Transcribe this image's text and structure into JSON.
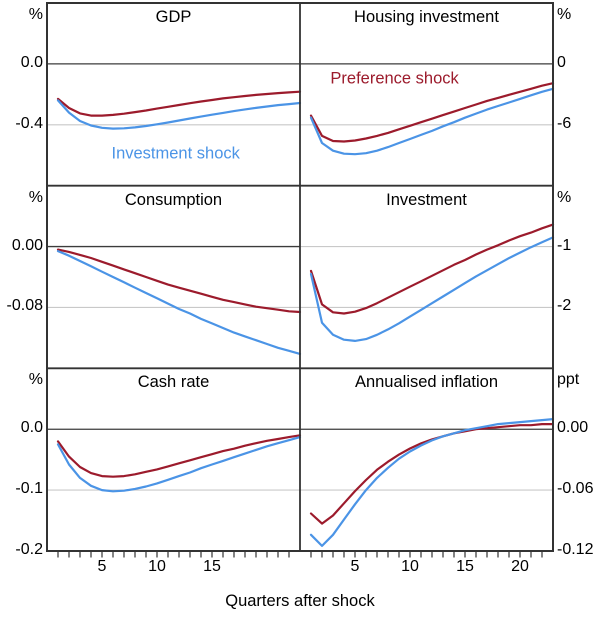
{
  "figure": {
    "xlabel": "Quarters after shock",
    "legend": [
      {
        "label": "Preference shock",
        "color_key": "preference"
      },
      {
        "label": "Investment shock",
        "color_key": "investment"
      }
    ],
    "colors": {
      "preference": "#9c1b2c",
      "investment": "#4b94e6",
      "gridline": "#c9c9c9",
      "zero_line": "#3c3c3c",
      "frame": "#333333",
      "text": "#000000",
      "background": "#ffffff"
    }
  },
  "chart_data": {
    "type": "line",
    "x_label": "Quarters after shock",
    "xlim": [
      0,
      23
    ],
    "x_quarters": [
      1,
      2,
      3,
      4,
      5,
      6,
      7,
      8,
      9,
      10,
      11,
      12,
      13,
      14,
      15,
      16,
      17,
      18,
      19,
      20,
      21,
      22,
      23
    ],
    "panels": [
      {
        "title": "GDP",
        "unit": "%",
        "axis_side": "left",
        "ylim": [
          -0.8,
          0.4
        ],
        "yticks": [
          {
            "v": 0.0,
            "label": "0.0",
            "zero": true
          },
          {
            "v": -0.4,
            "label": "-0.4",
            "zero": false
          }
        ],
        "series": [
          {
            "name": "Preference shock",
            "color_key": "preference",
            "values": [
              -0.23,
              -0.29,
              -0.325,
              -0.34,
              -0.34,
              -0.335,
              -0.327,
              -0.317,
              -0.306,
              -0.294,
              -0.282,
              -0.27,
              -0.258,
              -0.247,
              -0.237,
              -0.227,
              -0.219,
              -0.211,
              -0.204,
              -0.198,
              -0.192,
              -0.187,
              -0.183
            ]
          },
          {
            "name": "Investment shock",
            "color_key": "investment",
            "values": [
              -0.24,
              -0.32,
              -0.375,
              -0.405,
              -0.42,
              -0.425,
              -0.423,
              -0.417,
              -0.408,
              -0.397,
              -0.385,
              -0.372,
              -0.359,
              -0.346,
              -0.334,
              -0.322,
              -0.31,
              -0.299,
              -0.289,
              -0.28,
              -0.271,
              -0.264,
              -0.257
            ]
          }
        ],
        "annotation": {
          "text": "Investment shock",
          "color_key": "investment",
          "q": 11.7,
          "v": -0.59
        }
      },
      {
        "title": "Housing investment",
        "unit": "%",
        "axis_side": "right",
        "ylim": [
          -12,
          6
        ],
        "yticks": [
          {
            "v": 0,
            "label": "0",
            "zero": true
          },
          {
            "v": -6,
            "label": "-6",
            "zero": false
          }
        ],
        "series": [
          {
            "name": "Preference shock",
            "color_key": "preference",
            "values": [
              -5.1,
              -7.1,
              -7.6,
              -7.65,
              -7.55,
              -7.35,
              -7.1,
              -6.8,
              -6.45,
              -6.1,
              -5.75,
              -5.4,
              -5.05,
              -4.7,
              -4.35,
              -4.0,
              -3.65,
              -3.35,
              -3.05,
              -2.75,
              -2.45,
              -2.15,
              -1.9
            ]
          },
          {
            "name": "Investment shock",
            "color_key": "investment",
            "values": [
              -5.3,
              -7.8,
              -8.55,
              -8.85,
              -8.9,
              -8.8,
              -8.55,
              -8.2,
              -7.8,
              -7.4,
              -7.0,
              -6.6,
              -6.15,
              -5.75,
              -5.3,
              -4.9,
              -4.5,
              -4.15,
              -3.8,
              -3.45,
              -3.1,
              -2.75,
              -2.45
            ]
          }
        ],
        "annotation": {
          "text": "Preference shock",
          "color_key": "preference",
          "q": 8.6,
          "v": -1.5
        }
      },
      {
        "title": "Consumption",
        "unit": "%",
        "axis_side": "left",
        "ylim": [
          -0.16,
          0.08
        ],
        "yticks": [
          {
            "v": 0.0,
            "label": "0.00",
            "zero": true
          },
          {
            "v": -0.08,
            "label": "-0.08",
            "zero": false
          }
        ],
        "series": [
          {
            "name": "Preference shock",
            "color_key": "preference",
            "values": [
              -0.004,
              -0.007,
              -0.011,
              -0.015,
              -0.02,
              -0.025,
              -0.03,
              -0.035,
              -0.04,
              -0.045,
              -0.05,
              -0.054,
              -0.058,
              -0.062,
              -0.066,
              -0.07,
              -0.073,
              -0.076,
              -0.079,
              -0.081,
              -0.083,
              -0.085,
              -0.086
            ]
          },
          {
            "name": "Investment shock",
            "color_key": "investment",
            "values": [
              -0.006,
              -0.012,
              -0.019,
              -0.026,
              -0.033,
              -0.04,
              -0.047,
              -0.054,
              -0.061,
              -0.068,
              -0.075,
              -0.082,
              -0.088,
              -0.095,
              -0.101,
              -0.107,
              -0.113,
              -0.118,
              -0.123,
              -0.128,
              -0.133,
              -0.137,
              -0.141
            ]
          }
        ]
      },
      {
        "title": "Investment",
        "unit": "%",
        "axis_side": "right",
        "ylim": [
          -3,
          0
        ],
        "yticks": [
          {
            "v": -1,
            "label": "-1",
            "zero": false
          },
          {
            "v": -2,
            "label": "-2",
            "zero": false
          }
        ],
        "series": [
          {
            "name": "Preference shock",
            "color_key": "preference",
            "values": [
              -1.4,
              -1.95,
              -2.08,
              -2.1,
              -2.07,
              -2.01,
              -1.93,
              -1.84,
              -1.75,
              -1.66,
              -1.57,
              -1.48,
              -1.39,
              -1.3,
              -1.22,
              -1.13,
              -1.05,
              -0.98,
              -0.9,
              -0.83,
              -0.77,
              -0.7,
              -0.64
            ]
          },
          {
            "name": "Investment shock",
            "color_key": "investment",
            "values": [
              -1.45,
              -2.25,
              -2.45,
              -2.53,
              -2.55,
              -2.52,
              -2.45,
              -2.36,
              -2.26,
              -2.15,
              -2.04,
              -1.93,
              -1.82,
              -1.71,
              -1.6,
              -1.49,
              -1.39,
              -1.29,
              -1.19,
              -1.1,
              -1.01,
              -0.93,
              -0.85
            ]
          }
        ]
      },
      {
        "title": "Cash rate",
        "unit": "%",
        "axis_side": "left",
        "ylim": [
          -0.2,
          0.1
        ],
        "yticks": [
          {
            "v": 0.0,
            "label": "0.0",
            "zero": true
          },
          {
            "v": -0.1,
            "label": "-0.1",
            "zero": false
          },
          {
            "v": -0.2,
            "label": "-0.2",
            "zero": false
          }
        ],
        "xticks": [
          5,
          10,
          15
        ],
        "series": [
          {
            "name": "Preference shock",
            "color_key": "preference",
            "values": [
              -0.02,
              -0.045,
              -0.062,
              -0.072,
              -0.077,
              -0.078,
              -0.077,
              -0.074,
              -0.07,
              -0.066,
              -0.061,
              -0.056,
              -0.051,
              -0.046,
              -0.041,
              -0.036,
              -0.032,
              -0.027,
              -0.023,
              -0.019,
              -0.016,
              -0.013,
              -0.01
            ]
          },
          {
            "name": "Investment shock",
            "color_key": "investment",
            "values": [
              -0.025,
              -0.058,
              -0.08,
              -0.093,
              -0.1,
              -0.102,
              -0.101,
              -0.098,
              -0.094,
              -0.089,
              -0.083,
              -0.077,
              -0.071,
              -0.064,
              -0.058,
              -0.052,
              -0.046,
              -0.04,
              -0.034,
              -0.028,
              -0.023,
              -0.018,
              -0.013
            ]
          }
        ]
      },
      {
        "title": "Annualised inflation",
        "unit": "ppt",
        "axis_side": "right",
        "ylim": [
          -0.12,
          0.06
        ],
        "yticks": [
          {
            "v": 0.0,
            "label": "0.00",
            "zero": true
          },
          {
            "v": -0.06,
            "label": "-0.06",
            "zero": false
          },
          {
            "v": -0.12,
            "label": "-0.12",
            "zero": false
          }
        ],
        "xticks": [
          5,
          10,
          15,
          20
        ],
        "series": [
          {
            "name": "Preference shock",
            "color_key": "preference",
            "values": [
              -0.083,
              -0.093,
              -0.085,
              -0.073,
              -0.061,
              -0.05,
              -0.04,
              -0.032,
              -0.025,
              -0.019,
              -0.014,
              -0.01,
              -0.007,
              -0.004,
              -0.002,
              0.0,
              0.001,
              0.002,
              0.003,
              0.004,
              0.004,
              0.005,
              0.005
            ]
          },
          {
            "name": "Investment shock",
            "color_key": "investment",
            "values": [
              -0.104,
              -0.115,
              -0.104,
              -0.089,
              -0.074,
              -0.06,
              -0.048,
              -0.038,
              -0.029,
              -0.022,
              -0.016,
              -0.011,
              -0.007,
              -0.004,
              -0.001,
              0.001,
              0.003,
              0.005,
              0.006,
              0.007,
              0.008,
              0.009,
              0.01
            ]
          }
        ]
      }
    ]
  }
}
